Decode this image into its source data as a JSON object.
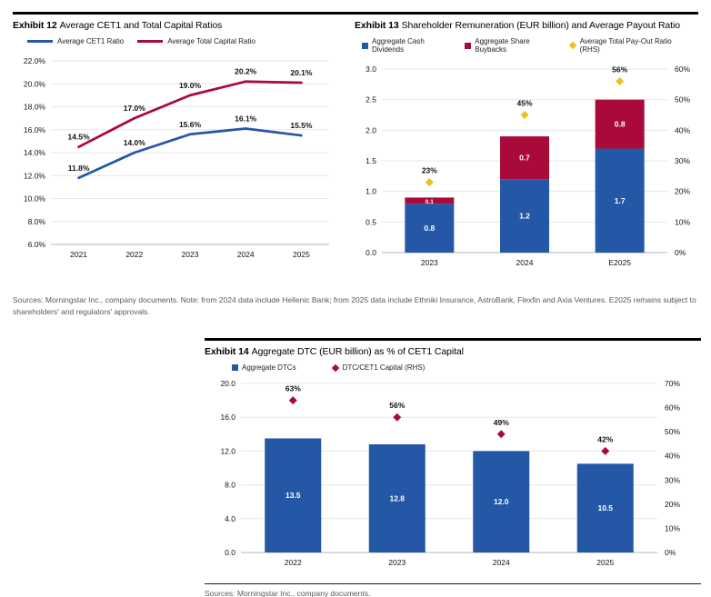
{
  "page": {
    "background": "#ffffff",
    "note_top": "Sources: Morningstar Inc., company documents. Note: from 2024 data include Hellenic Bank; from 2025 data include Ethniki Insurance, AstroBank, Flexfin and Axia Ventures. E2025 remains subject to shareholders' and regulators' approvals.",
    "note_bottom": "Sources: Morningstar Inc., company documents."
  },
  "exhibits": [
    {
      "label": "Exhibit 12",
      "title": "Average CET1 and Total Capital Ratios"
    },
    {
      "label": "Exhibit 13",
      "title": "Shareholder Remuneration (EUR billion) and Average Payout Ratio"
    },
    {
      "label": "Exhibit 14",
      "title": "Aggregate DTC (EUR billion) as % of CET1 Capital"
    }
  ],
  "colors": {
    "brand_blue": "#2458a7",
    "brand_crimson": "#aa0a3a",
    "accent_yellow": "#eebf20",
    "gridline": "#e7e7e7",
    "axis_line": "#b5b5b5",
    "label_text": "#111111",
    "note_text": "#595959"
  },
  "chart_data": [
    {
      "type": "line",
      "title": "Average CET1 and Total Capital Ratios",
      "categories": [
        "2021",
        "2022",
        "2023",
        "2024",
        "2025"
      ],
      "ylim": [
        6,
        22
      ],
      "yticks": [
        "6.0%",
        "8.0%",
        "10.0%",
        "12.0%",
        "14.0%",
        "16.0%",
        "18.0%",
        "20.0%",
        "22.0%"
      ],
      "grid": true,
      "legend_position": "top",
      "series": [
        {
          "type": "line",
          "name": "Average CET1 Ratio",
          "color": "#2458a7",
          "values": [
            11.8,
            14.0,
            15.6,
            16.1,
            15.5
          ],
          "labels": [
            "11.8%",
            "14.0%",
            "15.6%",
            "16.1%",
            "15.5%"
          ]
        },
        {
          "type": "line",
          "name": "Average Total Capital Ratio",
          "color": "#aa0a3a",
          "values": [
            14.5,
            17.0,
            19.0,
            20.2,
            20.1
          ],
          "labels": [
            "14.5%",
            "17.0%",
            "19.0%",
            "20.2%",
            "20.1%"
          ]
        }
      ]
    },
    {
      "type": "bar",
      "stacked": true,
      "title": "Shareholder Remuneration (EUR billion) and Average Payout Ratio",
      "categories": [
        "2023",
        "2024",
        "E2025"
      ],
      "ylim": [
        0,
        3
      ],
      "yticks": [
        "0.0",
        "0.5",
        "1.0",
        "1.5",
        "2.0",
        "2.5",
        "3.0"
      ],
      "y2lim": [
        0,
        60
      ],
      "y2ticks": [
        "0%",
        "10%",
        "20%",
        "30%",
        "40%",
        "50%",
        "60%"
      ],
      "grid": true,
      "legend_position": "top",
      "series": [
        {
          "type": "bar",
          "name": "Aggregate Cash Dividends",
          "color": "#2458a7",
          "values": [
            0.8,
            1.2,
            1.7
          ],
          "labels": [
            "0.8",
            "1.2",
            "1.7"
          ],
          "label_color": "#ffffff"
        },
        {
          "type": "bar",
          "name": "Aggregate Share Buybacks",
          "color": "#aa0a3a",
          "values": [
            0.1,
            0.7,
            0.8
          ],
          "labels": [
            "0.1",
            "0.7",
            "0.8"
          ],
          "label_color": "#ffffff"
        },
        {
          "type": "scatter",
          "name": "Average Total Pay-Out Ratio (RHS)",
          "color": "#eebf20",
          "axis": "right",
          "values": [
            23,
            45,
            56
          ],
          "labels": [
            "23%",
            "45%",
            "56%"
          ]
        }
      ]
    },
    {
      "type": "bar",
      "stacked": false,
      "title": "Aggregate DTC (EUR billion) as % of CET1 Capital",
      "categories": [
        "2022",
        "2023",
        "2024",
        "2025"
      ],
      "ylim": [
        0,
        20
      ],
      "yticks": [
        "0.0",
        "4.0",
        "8.0",
        "12.0",
        "16.0",
        "20.0"
      ],
      "y2lim": [
        0,
        70
      ],
      "y2ticks": [
        "0%",
        "10%",
        "20%",
        "30%",
        "40%",
        "50%",
        "60%",
        "70%"
      ],
      "grid": true,
      "legend_position": "top",
      "series": [
        {
          "type": "bar",
          "name": "Aggregate DTCs",
          "color": "#2458a7",
          "values": [
            13.5,
            12.8,
            12.0,
            10.5
          ],
          "labels": [
            "13.5",
            "12.8",
            "12.0",
            "10.5"
          ],
          "label_color": "#ffffff"
        },
        {
          "type": "scatter",
          "name": "DTC/CET1 Capital (RHS)",
          "color": "#aa0a3a",
          "axis": "right",
          "values": [
            63,
            56,
            49,
            42
          ],
          "labels": [
            "63%",
            "56%",
            "49%",
            "42%"
          ]
        }
      ]
    }
  ]
}
